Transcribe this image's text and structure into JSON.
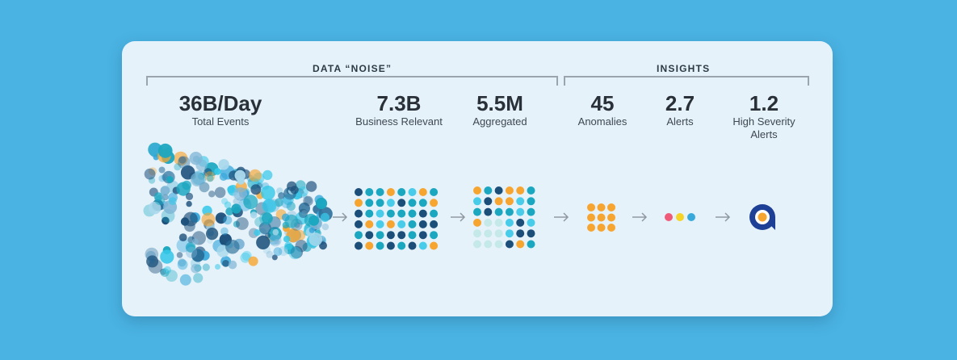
{
  "sections": {
    "noise_label": "DATA “NOISE”",
    "insights_label": "INSIGHTS"
  },
  "stats": [
    {
      "value": "36B/Day",
      "label": "Total Events"
    },
    {
      "value": "7.3B",
      "label": "Business Relevant"
    },
    {
      "value": "5.5M",
      "label": "Aggregated"
    },
    {
      "value": "45",
      "label": "Anomalies"
    },
    {
      "value": "2.7",
      "label": "Alerts"
    },
    {
      "value": "1.2",
      "label": "High Severity Alerts"
    }
  ],
  "colors": {
    "navy": "#1b4f7a",
    "teal": "#1ba7c0",
    "cyan": "#37c8e8",
    "orange": "#f7a531",
    "pink": "#ef5a78",
    "yellow": "#f5d327",
    "blue": "#39a9dc",
    "logo": "#1d3f95"
  },
  "icons": {
    "final_icon": "brand-logo-icon",
    "arrow_icon": "right-arrow-icon"
  }
}
